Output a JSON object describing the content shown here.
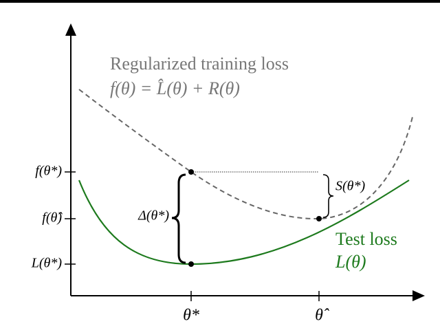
{
  "annotations": {
    "training_title": "Regularized training loss",
    "training_formula": "f(θ) = L̂(θ) + R(θ)",
    "test_title": "Test loss",
    "test_formula": "L(θ)",
    "delta": "Δ(θ*)",
    "s": "S(θ*)"
  },
  "y_labels": [
    "f(θ*)",
    "f(θ̂)",
    "L(θ*)"
  ],
  "x_labels": [
    "θ*",
    "θ̂"
  ]
}
